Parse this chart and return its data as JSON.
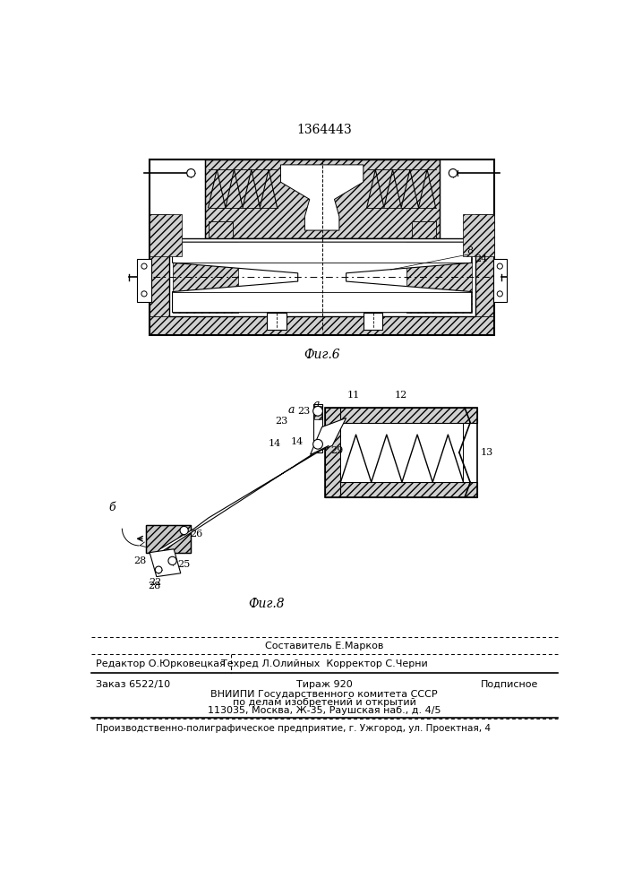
{
  "patent_number": "1364443",
  "fig6_caption": "Фиг.6",
  "fig8_caption": "Фиг.8",
  "footer_line1": "Составитель Е.Марков",
  "footer_line2_left": "Редактор О.Юрковецкая",
  "footer_line2_right": "Техред Л.Олийных  Корректор С.Черни",
  "footer_order": "Заказ 6522/10",
  "footer_tirazh": "Тираж 920",
  "footer_podpisnoe": "Подписное",
  "footer_vnipi": "ВНИИПИ Государственного комитета СССР",
  "footer_po_delam": "по делам изобретений и открытий",
  "footer_address": "113035, Москва, Ж-35, Раушская наб., д. 4/5",
  "footer_bottom": "Производственно-полиграфическое предприятие, г. Ужгород, ул. Проектная, 4",
  "bg_color": "#ffffff",
  "line_color": "#000000"
}
